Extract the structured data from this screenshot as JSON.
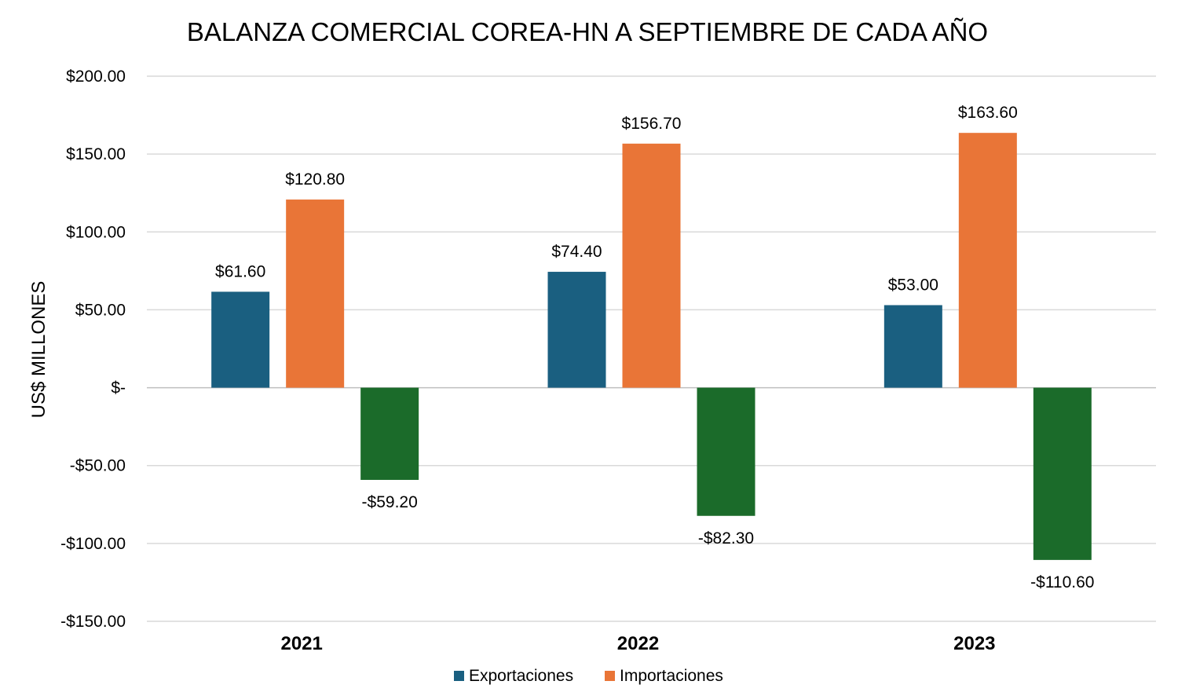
{
  "chart_data": {
    "type": "bar",
    "title": "BALANZA COMERCIAL COREA-HN A SEPTIEMBRE DE CADA AÑO",
    "xlabel": "",
    "ylabel": "US$ MILLONES",
    "ylim": [
      -150,
      200
    ],
    "yticks": [
      200,
      150,
      100,
      50,
      0,
      -50,
      -100,
      -150
    ],
    "ytick_labels": [
      "$200.00",
      "$150.00",
      "$100.00",
      "$50.00",
      "$-",
      "-$50.00",
      "-$100.00",
      "-$150.00"
    ],
    "categories": [
      "2021",
      "2022",
      "2023"
    ],
    "series": [
      {
        "name": "Exportaciones",
        "color": "#1a5f80",
        "values": [
          61.6,
          74.4,
          53.0
        ],
        "labels": [
          "$61.60",
          "$74.40",
          "$53.00"
        ],
        "in_legend": true
      },
      {
        "name": "Importaciones",
        "color": "#e97537",
        "values": [
          120.8,
          156.7,
          163.6
        ],
        "labels": [
          "$120.80",
          "$156.70",
          "$163.60"
        ],
        "in_legend": true
      },
      {
        "name": "",
        "color": "#1b6b2a",
        "values": [
          -59.2,
          -82.3,
          -110.6
        ],
        "labels": [
          "-$59.20",
          "-$82.30",
          "-$110.60"
        ],
        "in_legend": false
      }
    ],
    "grid": true,
    "legend_position": "bottom"
  }
}
